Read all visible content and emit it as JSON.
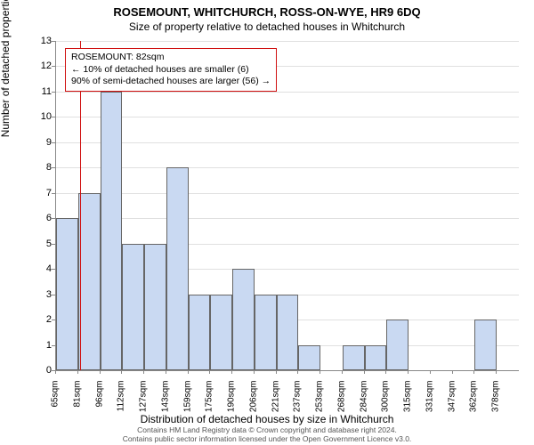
{
  "title": "ROSEMOUNT, WHITCHURCH, ROSS-ON-WYE, HR9 6DQ",
  "subtitle": "Size of property relative to detached houses in Whitchurch",
  "ylabel": "Number of detached properties",
  "xlabel": "Distribution of detached houses by size in Whitchurch",
  "footer_line1": "Contains HM Land Registry data © Crown copyright and database right 2024.",
  "footer_line2": "Contains public sector information licensed under the Open Government Licence v3.0.",
  "chart": {
    "type": "histogram",
    "ylim": [
      0,
      13
    ],
    "ytick_step": 1,
    "bar_fill": "#c9d9f2",
    "bar_border": "#666666",
    "grid_color": "#e0e0e0",
    "background_color": "#ffffff",
    "x_start": 65,
    "x_step": 15.6,
    "x_bins": 21,
    "x_labels": [
      "65sqm",
      "81sqm",
      "96sqm",
      "112sqm",
      "127sqm",
      "143sqm",
      "159sqm",
      "175sqm",
      "190sqm",
      "206sqm",
      "221sqm",
      "237sqm",
      "253sqm",
      "268sqm",
      "284sqm",
      "300sqm",
      "315sqm",
      "331sqm",
      "347sqm",
      "362sqm",
      "378sqm"
    ],
    "values": [
      6,
      7,
      11,
      5,
      5,
      8,
      3,
      3,
      4,
      3,
      3,
      1,
      0,
      1,
      1,
      2,
      0,
      0,
      0,
      2
    ],
    "marker": {
      "value_sqm": 82,
      "color": "#d01010"
    },
    "annotation": {
      "line1": "ROSEMOUNT: 82sqm",
      "line2": "← 10% of detached houses are smaller (6)",
      "line3": "90% of semi-detached houses are larger (56) →",
      "border_color": "#d01010",
      "font_size": 10.5
    }
  }
}
